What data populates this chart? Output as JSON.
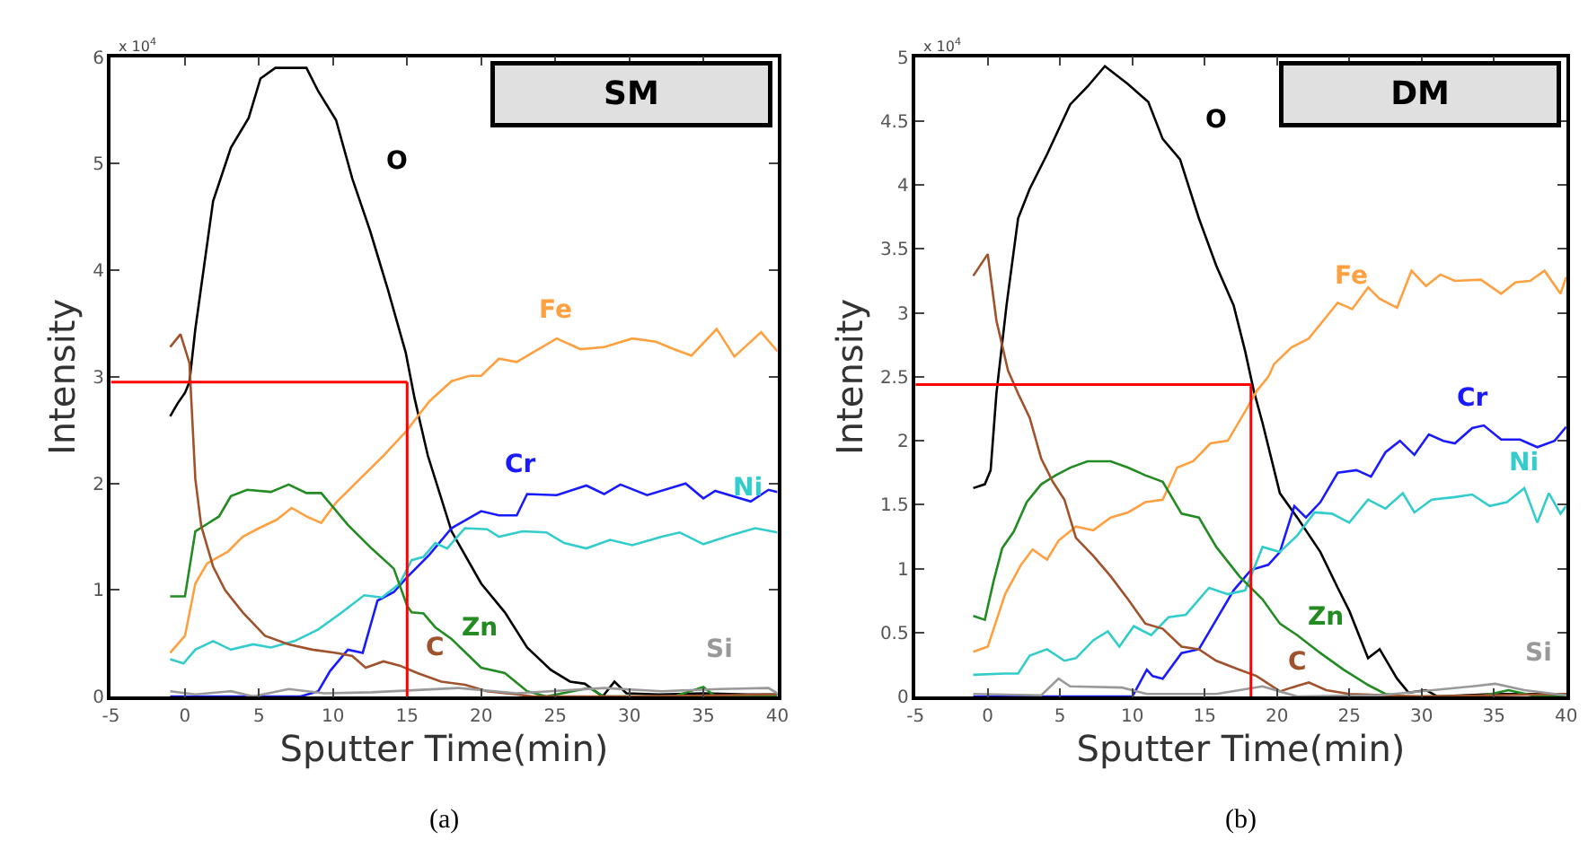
{
  "chart_data": [
    {
      "type": "line",
      "xlabel": "Sputter Time(min)",
      "ylabel": "Intensity",
      "xlim": [
        -5,
        40
      ],
      "xticks": [
        -5,
        0,
        5,
        10,
        15,
        20,
        25,
        30,
        35,
        40
      ],
      "ylim": [
        0,
        6
      ],
      "yticks": [
        0,
        1,
        2,
        3,
        4,
        5,
        6
      ],
      "grid": false,
      "legend": false,
      "marker": "none",
      "line_style": "solid",
      "annotations": [
        "x 10$^{4}$",
        "SM",
        "(a)"
      ],
      "ref_lines": [
        {
          "axis": "y",
          "value": 2.95,
          "color": "#ff0000"
        },
        {
          "axis": "x",
          "value": 15,
          "color": "#ff0000"
        }
      ],
      "series": [
        {
          "name": "O",
          "color": "#000000",
          "x": [
            -1,
            -0.5,
            0,
            0.3,
            0.7,
            1.9,
            3.1,
            4.3,
            5.1,
            6.1,
            8.2,
            9,
            10.2,
            11.3,
            12.5,
            13.7,
            14.9,
            15.5,
            16.4,
            18,
            20,
            21.6,
            23.1,
            24.7,
            26,
            27,
            28.2,
            29,
            29.8,
            32,
            35,
            38,
            40
          ],
          "values": [
            2.63,
            2.75,
            2.85,
            2.95,
            3.45,
            4.65,
            5.15,
            5.43,
            5.8,
            5.9,
            5.9,
            5.68,
            5.41,
            4.86,
            4.37,
            3.82,
            3.23,
            2.8,
            2.26,
            1.55,
            1.06,
            0.79,
            0.46,
            0.25,
            0.14,
            0.12,
            0,
            0.14,
            0.03,
            0.02,
            0.03,
            0.02,
            0.02
          ]
        },
        {
          "name": "Fe",
          "color": "#ffa040",
          "x": [
            -1,
            0,
            0.7,
            1.5,
            2.9,
            3.9,
            5,
            6.2,
            7.2,
            8.2,
            9.2,
            10.2,
            11.8,
            13.4,
            15,
            16.5,
            18,
            19.2,
            20,
            21.2,
            22.4,
            23.5,
            25.1,
            26.7,
            28.3,
            30.2,
            31.8,
            33,
            34.2,
            35.9,
            37.1,
            38.9,
            40
          ],
          "values": [
            0.41,
            0.57,
            1.06,
            1.25,
            1.36,
            1.5,
            1.58,
            1.66,
            1.77,
            1.69,
            1.63,
            1.82,
            2.04,
            2.26,
            2.5,
            2.77,
            2.96,
            3.01,
            3.01,
            3.17,
            3.14,
            3.23,
            3.36,
            3.26,
            3.28,
            3.36,
            3.33,
            3.26,
            3.2,
            3.45,
            3.19,
            3.42,
            3.24
          ]
        },
        {
          "name": "Cr",
          "color": "#1a1aff",
          "x": [
            -1,
            2,
            5,
            7.8,
            9,
            9.8,
            11,
            12,
            13,
            14.1,
            15,
            16.5,
            18,
            20,
            21.2,
            22.4,
            23.1,
            25.1,
            27.1,
            28.3,
            29.4,
            31.2,
            33.8,
            35,
            35.8,
            38.2,
            39.4,
            40
          ],
          "values": [
            0,
            0,
            0,
            0,
            0.05,
            0.24,
            0.44,
            0.41,
            0.9,
            0.98,
            1.12,
            1.33,
            1.58,
            1.74,
            1.7,
            1.7,
            1.9,
            1.89,
            1.98,
            1.9,
            1.99,
            1.89,
            2.0,
            1.86,
            1.93,
            1.83,
            1.94,
            1.92
          ]
        },
        {
          "name": "Ni",
          "color": "#33cccc",
          "x": [
            -1,
            -0.1,
            0.7,
            1.9,
            3.1,
            4.6,
            5.8,
            7.4,
            9,
            10.6,
            12.1,
            13.3,
            14.5,
            15.3,
            16.1,
            16.9,
            17.7,
            18.9,
            20.4,
            21.2,
            22.8,
            24.4,
            25.6,
            27.1,
            28.7,
            30.2,
            32.2,
            33.4,
            35,
            37,
            38.5,
            40
          ],
          "values": [
            0.35,
            0.31,
            0.44,
            0.52,
            0.44,
            0.49,
            0.46,
            0.52,
            0.63,
            0.79,
            0.95,
            0.93,
            1.06,
            1.28,
            1.31,
            1.44,
            1.39,
            1.58,
            1.57,
            1.5,
            1.55,
            1.54,
            1.44,
            1.39,
            1.47,
            1.42,
            1.5,
            1.54,
            1.43,
            1.52,
            1.58,
            1.54
          ]
        },
        {
          "name": "Zn",
          "color": "#228b22",
          "x": [
            -1,
            0,
            0.7,
            1.5,
            2.3,
            3.1,
            4.2,
            5.8,
            7,
            8.2,
            9.2,
            11,
            12.6,
            14.1,
            15,
            15.3,
            16.1,
            16.9,
            18,
            20,
            21.6,
            23.1,
            24.4,
            27.3,
            28.3,
            33,
            35,
            35.8,
            40
          ],
          "values": [
            0.94,
            0.94,
            1.55,
            1.62,
            1.69,
            1.88,
            1.94,
            1.92,
            1.99,
            1.91,
            1.91,
            1.61,
            1.39,
            1.2,
            0.85,
            0.79,
            0.78,
            0.65,
            0.54,
            0.27,
            0.22,
            0.05,
            0,
            0.08,
            0,
            0,
            0.09,
            0,
            0
          ]
        },
        {
          "name": "C",
          "color": "#a0522d",
          "x": [
            -1,
            -0.3,
            0.3,
            0.7,
            1.1,
            1.9,
            2.7,
            3.9,
            5.4,
            7,
            8.6,
            10.2,
            11.3,
            12.2,
            13.4,
            14.5,
            15.7,
            17.3,
            18.9,
            20.4,
            22.4,
            23.5,
            30,
            40
          ],
          "values": [
            3.28,
            3.4,
            3.13,
            2.04,
            1.6,
            1.22,
            1.0,
            0.79,
            0.57,
            0.49,
            0.44,
            0.41,
            0.38,
            0.27,
            0.33,
            0.29,
            0.22,
            0.14,
            0.11,
            0.05,
            0.02,
            0,
            0,
            0.02
          ]
        },
        {
          "name": "Si",
          "color": "#999999",
          "x": [
            -1,
            0.7,
            3.1,
            4.6,
            7,
            9.4,
            12.6,
            18.5,
            22.4,
            28.3,
            32.2,
            36.1,
            39.4,
            40
          ],
          "values": [
            0.05,
            0.02,
            0.05,
            0,
            0.07,
            0.03,
            0.04,
            0.08,
            0.03,
            0.08,
            0.05,
            0.07,
            0.08,
            0.03
          ]
        }
      ]
    },
    {
      "type": "line",
      "xlabel": "Sputter Time(min)",
      "ylabel": "Intensity",
      "xlim": [
        -5,
        40
      ],
      "xticks": [
        -5,
        0,
        5,
        10,
        15,
        20,
        25,
        30,
        35,
        40
      ],
      "ylim": [
        0,
        5
      ],
      "yticks": [
        0,
        0.5,
        1,
        1.5,
        2,
        2.5,
        3,
        3.5,
        4,
        4.5,
        5
      ],
      "grid": false,
      "legend": false,
      "marker": "none",
      "line_style": "solid",
      "annotations": [
        "x 10$^{4}$",
        "DM",
        "(b)"
      ],
      "ref_lines": [
        {
          "axis": "y",
          "value": 2.44,
          "color": "#ff0000"
        },
        {
          "axis": "x",
          "value": 18.2,
          "color": "#ff0000"
        }
      ],
      "series": [
        {
          "name": "O",
          "color": "#000000",
          "x": [
            -1,
            -0.2,
            0.2,
            0.6,
            1.3,
            2.1,
            2.9,
            4.1,
            5.7,
            6.9,
            8.1,
            9.7,
            11.1,
            12.1,
            13.3,
            14.6,
            15.8,
            17,
            17.8,
            18.4,
            19,
            20.2,
            21.4,
            23,
            24.2,
            25,
            26.3,
            27.1,
            28.3,
            29.1,
            30.3,
            31.1,
            35,
            40
          ],
          "values": [
            1.63,
            1.66,
            1.77,
            2.37,
            3.06,
            3.74,
            3.97,
            4.24,
            4.63,
            4.77,
            4.93,
            4.79,
            4.65,
            4.36,
            4.2,
            3.74,
            3.37,
            3.06,
            2.7,
            2.39,
            2.14,
            1.59,
            1.4,
            1.13,
            0.85,
            0.67,
            0.3,
            0.37,
            0.14,
            0.03,
            0.05,
            0,
            0.02,
            0.02
          ]
        },
        {
          "name": "Fe",
          "color": "#ffa040",
          "x": [
            -1,
            0,
            1.2,
            2.3,
            3.1,
            4.1,
            4.9,
            6.1,
            7.3,
            8.5,
            9.7,
            10.9,
            12.1,
            13.1,
            14.2,
            15.4,
            16.6,
            17.8,
            18.6,
            19.4,
            19.8,
            21,
            22.2,
            23.2,
            24.2,
            25.2,
            26.3,
            27.1,
            28.3,
            29.3,
            30.3,
            31.3,
            32.3,
            34.1,
            35.5,
            36.5,
            37.5,
            38.5,
            39.6,
            40
          ],
          "values": [
            0.35,
            0.39,
            0.8,
            1.03,
            1.15,
            1.07,
            1.22,
            1.33,
            1.3,
            1.4,
            1.44,
            1.52,
            1.54,
            1.79,
            1.84,
            1.98,
            2.0,
            2.23,
            2.39,
            2.5,
            2.6,
            2.73,
            2.8,
            2.94,
            3.08,
            3.03,
            3.2,
            3.11,
            3.04,
            3.33,
            3.21,
            3.3,
            3.25,
            3.26,
            3.15,
            3.24,
            3.25,
            3.33,
            3.15,
            3.28
          ]
        },
        {
          "name": "Cr",
          "color": "#1a1aff",
          "x": [
            -1,
            5,
            10,
            11,
            11.4,
            12.1,
            13.4,
            14.6,
            15.8,
            17,
            18.2,
            19.4,
            20.2,
            21.2,
            22,
            23,
            24.2,
            25.5,
            26.5,
            27.5,
            28.5,
            29.5,
            30.5,
            31.5,
            32.3,
            33.5,
            34.3,
            35.5,
            36.8,
            38,
            39.2,
            40
          ],
          "values": [
            0,
            0,
            0,
            0.21,
            0.16,
            0.14,
            0.34,
            0.37,
            0.6,
            0.83,
            0.99,
            1.03,
            1.13,
            1.49,
            1.4,
            1.52,
            1.75,
            1.77,
            1.72,
            1.91,
            2.0,
            1.89,
            2.05,
            2.0,
            1.98,
            2.1,
            2.12,
            2.01,
            2.01,
            1.95,
            2.0,
            2.11
          ]
        },
        {
          "name": "Ni",
          "color": "#33cccc",
          "x": [
            -1,
            1.2,
            2.1,
            2.9,
            4.1,
            5.3,
            6.1,
            7.3,
            8.3,
            9.1,
            10.1,
            11.3,
            12.5,
            13.7,
            15.3,
            16.6,
            17.8,
            19,
            20.2,
            21.4,
            22.6,
            23.8,
            25,
            26.3,
            27.5,
            28.7,
            29.5,
            30.7,
            32.3,
            33.5,
            34.7,
            35.9,
            37.1,
            38,
            38.8,
            39.6,
            40
          ],
          "values": [
            0.17,
            0.18,
            0.18,
            0.32,
            0.37,
            0.28,
            0.3,
            0.44,
            0.51,
            0.39,
            0.55,
            0.48,
            0.62,
            0.64,
            0.85,
            0.8,
            0.83,
            1.17,
            1.13,
            1.26,
            1.44,
            1.43,
            1.36,
            1.54,
            1.47,
            1.59,
            1.44,
            1.54,
            1.56,
            1.58,
            1.49,
            1.52,
            1.63,
            1.36,
            1.59,
            1.43,
            1.49
          ]
        },
        {
          "name": "Zn",
          "color": "#228b22",
          "x": [
            -1,
            -0.2,
            0.4,
            1,
            1.8,
            2.7,
            3.7,
            4.7,
            5.7,
            6.9,
            8.5,
            9.7,
            10.9,
            12.1,
            13.4,
            14.6,
            15.8,
            17.4,
            19,
            20.2,
            21.4,
            23,
            24.6,
            26.3,
            27.5,
            28.7,
            34,
            36,
            38,
            40
          ],
          "values": [
            0.63,
            0.6,
            0.9,
            1.16,
            1.29,
            1.52,
            1.66,
            1.73,
            1.79,
            1.84,
            1.84,
            1.79,
            1.73,
            1.68,
            1.43,
            1.4,
            1.17,
            0.94,
            0.76,
            0.57,
            0.48,
            0.34,
            0.21,
            0.09,
            0.02,
            0,
            0,
            0.05,
            0,
            0
          ]
        },
        {
          "name": "C",
          "color": "#a0522d",
          "x": [
            -1,
            0,
            0.6,
            1.4,
            2.1,
            2.9,
            3.7,
            4.5,
            5.3,
            6.1,
            7.3,
            8.5,
            9.7,
            10.9,
            12.1,
            13.4,
            14.6,
            15.8,
            17.4,
            18.6,
            20.2,
            21,
            22.2,
            23.4,
            25,
            30,
            40
          ],
          "values": [
            3.29,
            3.46,
            2.94,
            2.55,
            2.37,
            2.18,
            1.86,
            1.68,
            1.54,
            1.24,
            1.1,
            0.94,
            0.76,
            0.57,
            0.53,
            0.39,
            0.37,
            0.28,
            0.21,
            0.16,
            0.04,
            0.07,
            0.11,
            0.05,
            0.02,
            0,
            0.02
          ]
        },
        {
          "name": "Si",
          "color": "#999999",
          "x": [
            -1,
            3.7,
            4.9,
            5.7,
            9.3,
            11,
            15.8,
            19,
            21.4,
            27.1,
            33.5,
            35.1,
            37.1,
            40
          ],
          "values": [
            0.02,
            0.01,
            0.14,
            0.08,
            0.07,
            0.02,
            0.02,
            0.08,
            0,
            0.01,
            0.08,
            0.1,
            0.05,
            0.01
          ]
        }
      ]
    }
  ]
}
